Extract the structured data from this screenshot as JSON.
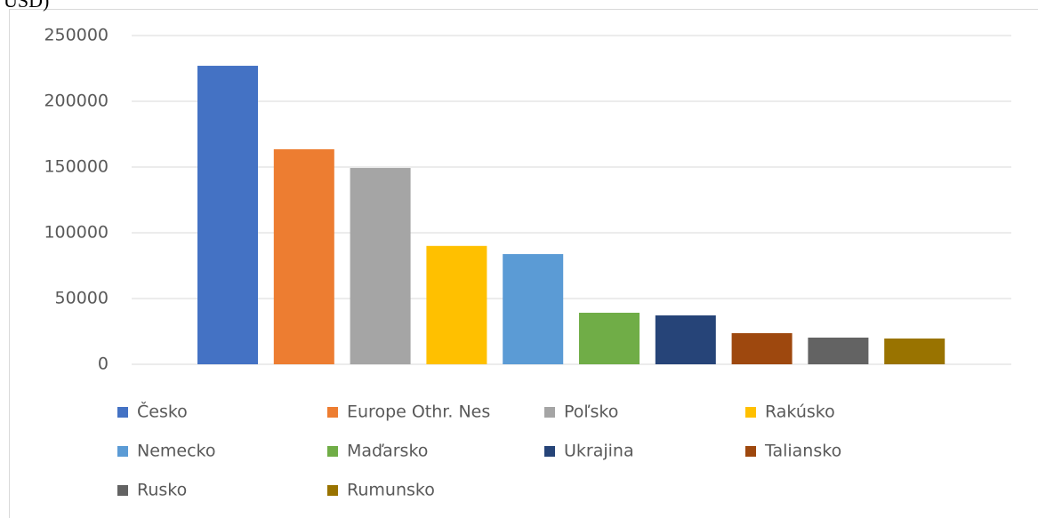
{
  "chart_data": {
    "type": "bar",
    "title": "USD)",
    "categories": [
      "Česko",
      "Europe Othr. Nes",
      "Poľsko",
      "Rakúsko",
      "Nemecko",
      "Maďarsko",
      "Ukrajina",
      "Taliansko",
      "Rusko",
      "Rumunsko"
    ],
    "values": [
      227000,
      163500,
      149300,
      90000,
      83800,
      39200,
      37200,
      23700,
      20300,
      19600
    ],
    "colors": [
      "#4472c4",
      "#ed7d31",
      "#a5a5a5",
      "#ffc000",
      "#5b9bd5",
      "#70ad47",
      "#264478",
      "#9e480e",
      "#636363",
      "#997300"
    ],
    "ylim": [
      0,
      250000
    ],
    "yticks": [
      0,
      50000,
      100000,
      150000,
      200000,
      250000
    ],
    "grid": true,
    "legend": "bottom"
  }
}
